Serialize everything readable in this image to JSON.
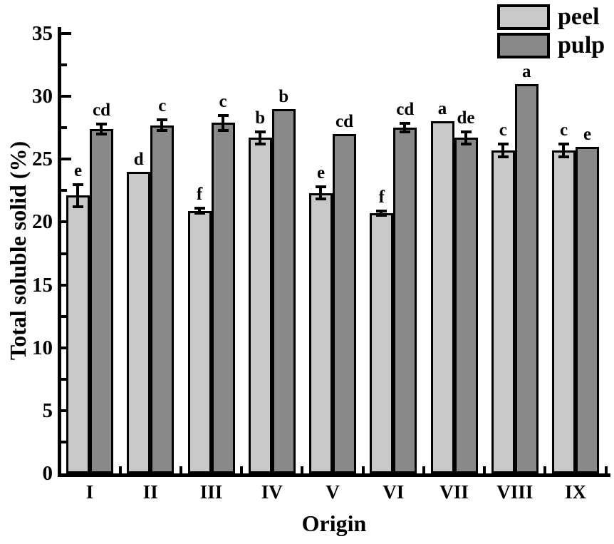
{
  "chart_data": {
    "type": "bar",
    "title": "",
    "xlabel": "Origin",
    "ylabel": "Total soluble solid (%)",
    "ylim": [
      0,
      35
    ],
    "y_major_ticks": [
      0,
      5,
      10,
      15,
      20,
      25,
      30,
      35
    ],
    "y_minor_ticks": [
      2.5,
      7.5,
      12.5,
      17.5,
      22.5,
      27.5,
      32.5
    ],
    "grid": "off",
    "legend_position": "top-right",
    "categories": [
      "I",
      "II",
      "III",
      "IV",
      "V",
      "VI",
      "VII",
      "VIII",
      "IX"
    ],
    "series": [
      {
        "name": "peel",
        "color": "#c9c9c9",
        "values": [
          22.1,
          24.0,
          20.9,
          26.7,
          22.3,
          20.7,
          28.0,
          25.7,
          25.7
        ],
        "errors": [
          1.0,
          0,
          0.3,
          0.6,
          0.6,
          0.3,
          0,
          0.6,
          0.6
        ],
        "letters": [
          "e",
          "d",
          "f",
          "b",
          "e",
          "f",
          "a",
          "c",
          "c"
        ]
      },
      {
        "name": "pulp",
        "color": "#898989",
        "values": [
          27.4,
          27.7,
          27.9,
          29.0,
          27.0,
          27.5,
          26.7,
          31.0,
          26.0
        ],
        "errors": [
          0.5,
          0.55,
          0.7,
          0,
          0,
          0.45,
          0.6,
          0,
          0
        ],
        "letters": [
          "cd",
          "c",
          "c",
          "b",
          "cd",
          "cd",
          "de",
          "a",
          "e"
        ]
      }
    ],
    "colors": {
      "axis": "#000000",
      "background": "#ffffff"
    }
  }
}
